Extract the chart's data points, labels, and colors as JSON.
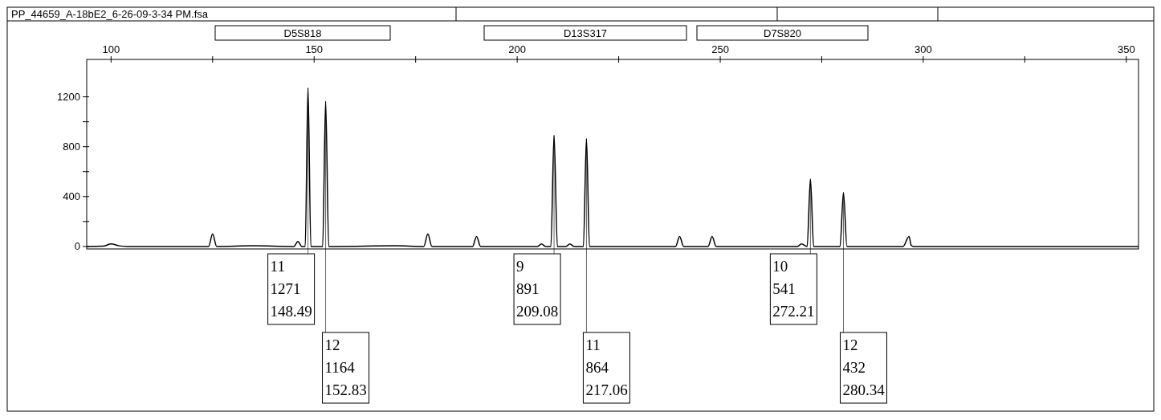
{
  "chart_data": {
    "type": "line",
    "title": "PP_44659_A-18bE2_6-26-09-3-34 PM.fsa",
    "x": [
      94,
      98,
      100,
      102,
      104,
      110,
      124,
      125,
      126,
      135,
      145,
      146,
      147,
      147.8,
      148.49,
      149.2,
      150,
      152.1,
      152.83,
      153.6,
      155,
      170,
      177,
      178,
      179,
      185,
      189,
      190,
      191,
      200,
      205,
      206,
      207,
      208.3,
      209.08,
      209.9,
      212,
      213,
      214,
      216.3,
      217.06,
      217.8,
      220,
      235,
      239,
      240,
      241,
      246,
      247,
      248,
      249,
      260,
      269,
      270,
      271.4,
      272.21,
      273,
      276,
      279.5,
      280.34,
      281.2,
      285,
      295,
      296.5,
      297,
      297.5,
      300,
      320,
      340,
      353
    ],
    "values": [
      0,
      2,
      20,
      5,
      0,
      0,
      0,
      100,
      0,
      5,
      0,
      40,
      0,
      0,
      1271,
      0,
      0,
      0,
      1164,
      0,
      0,
      5,
      0,
      100,
      0,
      0,
      0,
      80,
      0,
      0,
      0,
      20,
      0,
      0,
      891,
      0,
      0,
      20,
      0,
      0,
      864,
      0,
      0,
      0,
      0,
      80,
      0,
      0,
      0,
      80,
      0,
      0,
      0,
      20,
      0,
      541,
      0,
      0,
      0,
      432,
      0,
      0,
      0,
      80,
      10,
      0,
      0,
      0,
      0,
      0
    ],
    "color": "#000000",
    "xlim": [
      94,
      353
    ],
    "xticks": [
      100,
      {
        "value": 125,
        "label": null
      },
      150,
      {
        "value": 175,
        "label": null
      },
      200,
      {
        "value": 225,
        "label": null
      },
      250,
      {
        "value": 275,
        "label": null
      },
      300,
      {
        "value": 325,
        "label": null
      },
      350
    ],
    "ylim": [
      -20,
      1500
    ],
    "yticks": [
      0,
      {
        "value": 200,
        "label": null
      },
      400,
      {
        "value": 600,
        "label": null
      },
      800,
      {
        "value": 1000,
        "label": null
      },
      1200
    ],
    "annotations": [
      "D5S818",
      "D13S317",
      "D7S820",
      {
        "text": "11\n1271\n148.49",
        "x": 148.49,
        "y": 1271
      },
      {
        "text": "12\n1164\n152.83",
        "x": 152.83,
        "y": 1164
      },
      {
        "text": "9\n891\n209.08",
        "x": 209.08,
        "y": 891
      },
      {
        "text": "11\n864\n217.06",
        "x": 217.06,
        "y": 864
      },
      {
        "text": "10\n541\n272.21",
        "x": 272.21,
        "y": 541
      },
      {
        "text": "12\n432\n280.34",
        "x": 280.34,
        "y": 432
      }
    ],
    "grid": false
  }
}
